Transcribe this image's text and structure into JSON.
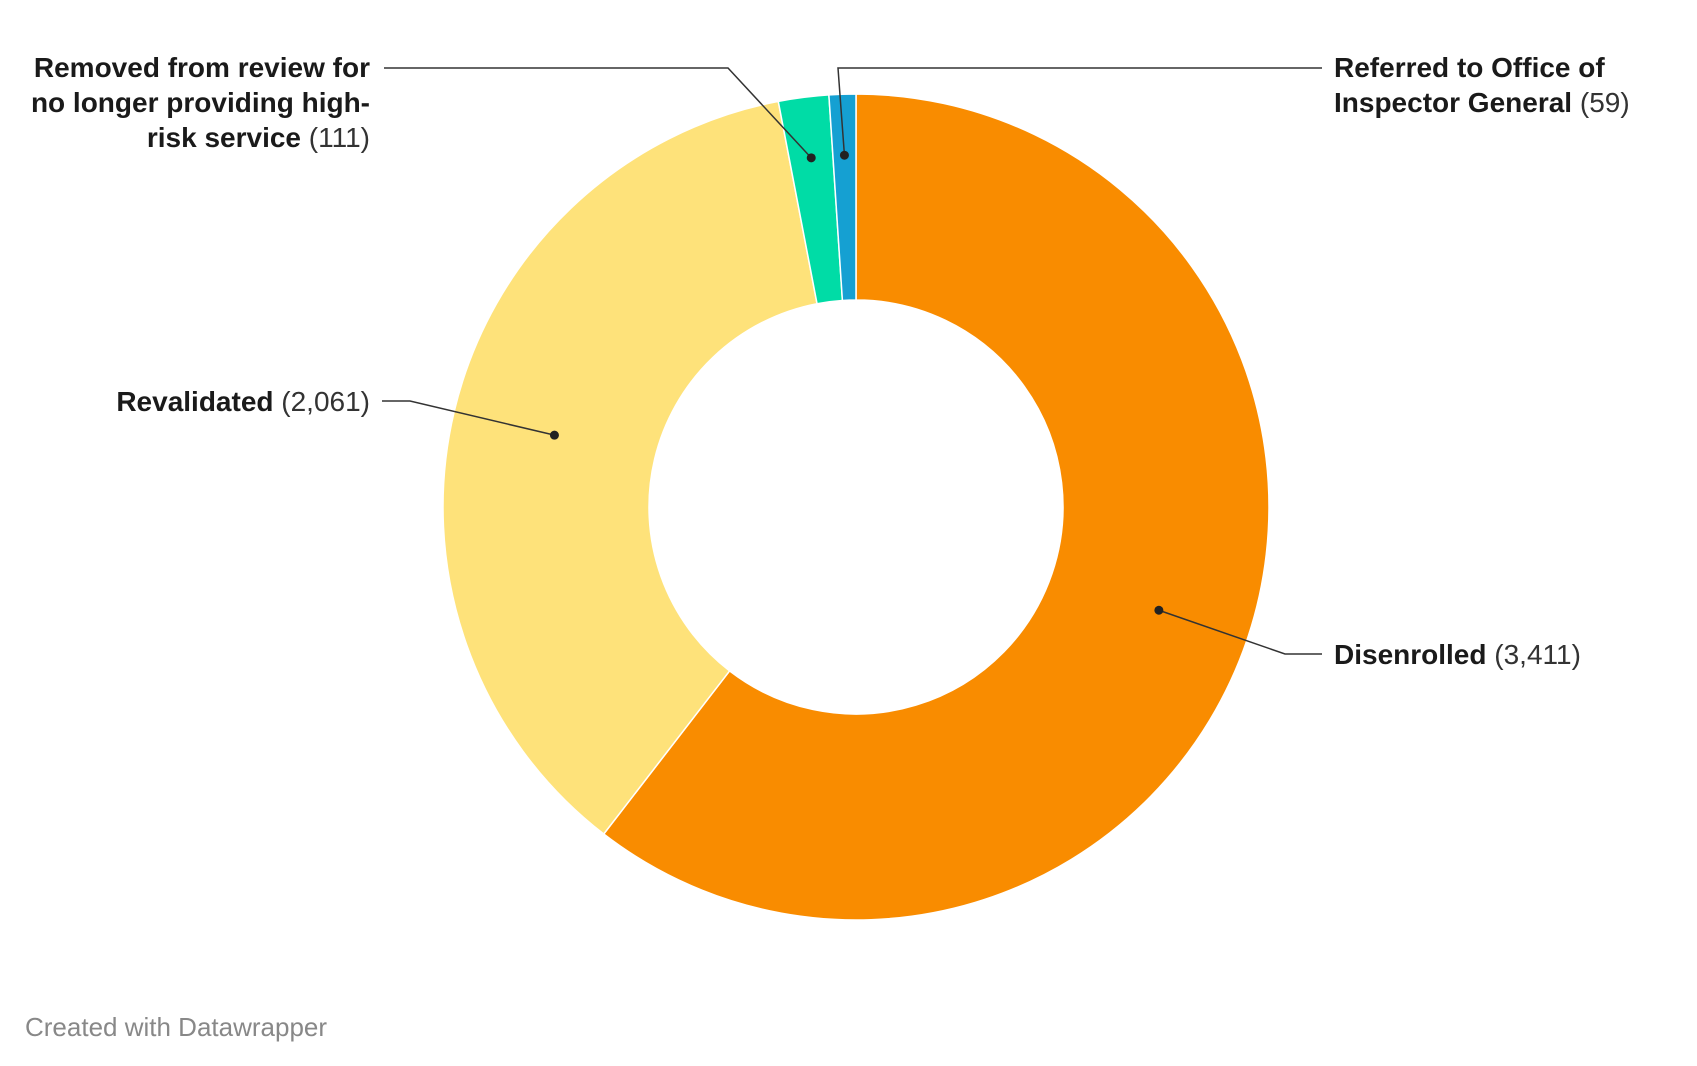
{
  "chart_data": {
    "type": "pie",
    "variant": "donut",
    "start_angle_deg": 0,
    "direction": "clockwise",
    "slices": [
      {
        "label": "Disenrolled",
        "value": 3411,
        "value_label": "(3,411)",
        "color": "#f98c00",
        "label_side": "right"
      },
      {
        "label": "Revalidated",
        "value": 2061,
        "value_label": "(2,061)",
        "color": "#fee27a",
        "label_side": "left"
      },
      {
        "label": "Removed from review for no longer providing high-risk service",
        "value": 111,
        "value_label": "(111)",
        "color": "#00dca6",
        "label_side": "left"
      },
      {
        "label": "Referred to Office of Inspector General",
        "value": 59,
        "value_label": "(59)",
        "color": "#15a0d2",
        "label_side": "right"
      }
    ],
    "title": "",
    "legend": "none"
  },
  "labels": {
    "disenrolled": {
      "name": "Disenrolled",
      "value": "(3,411)"
    },
    "revalidated": {
      "name": "Revalidated",
      "value": "(2,061)"
    },
    "removed": {
      "line1": "Removed from review for",
      "line2": "no longer providing high-",
      "line3_name": "risk service",
      "value": "(111)"
    },
    "referred": {
      "line1": "Referred to Office of",
      "line2_name": "Inspector General",
      "value": "(59)"
    }
  },
  "footer": {
    "credit": "Created with Datawrapper"
  }
}
